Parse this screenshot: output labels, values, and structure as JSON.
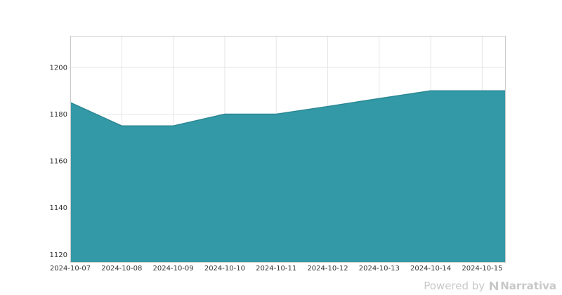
{
  "chart_data": {
    "type": "area",
    "title": "",
    "xlabel": "",
    "ylabel": "",
    "x": [
      "2024-10-07",
      "2024-10-08",
      "2024-10-09",
      "2024-10-10",
      "2024-10-11",
      "2024-10-12",
      "2024-10-13",
      "2024-10-14",
      "2024-10-15"
    ],
    "series": [
      {
        "values": [
          1185,
          1175,
          1175,
          1180,
          1180,
          1183.3,
          1186.7,
          1190,
          1190
        ],
        "color": "#3399a6"
      }
    ],
    "x_tick_labels": [
      "2024-10-07",
      "2024-10-08",
      "2024-10-09",
      "2024-10-10",
      "2024-10-11",
      "2024-10-12",
      "2024-10-13",
      "2024-10-14",
      "2024-10-15"
    ],
    "y_ticks": [
      1120,
      1140,
      1160,
      1180,
      1200
    ],
    "xlim": [
      "2024-10-07",
      "2024-10-15T11:00"
    ],
    "ylim": [
      1116.5,
      1213.5
    ],
    "grid": true,
    "legend": "none"
  },
  "watermark": {
    "powered_by": "Powered by",
    "brand": "Narrativa"
  }
}
